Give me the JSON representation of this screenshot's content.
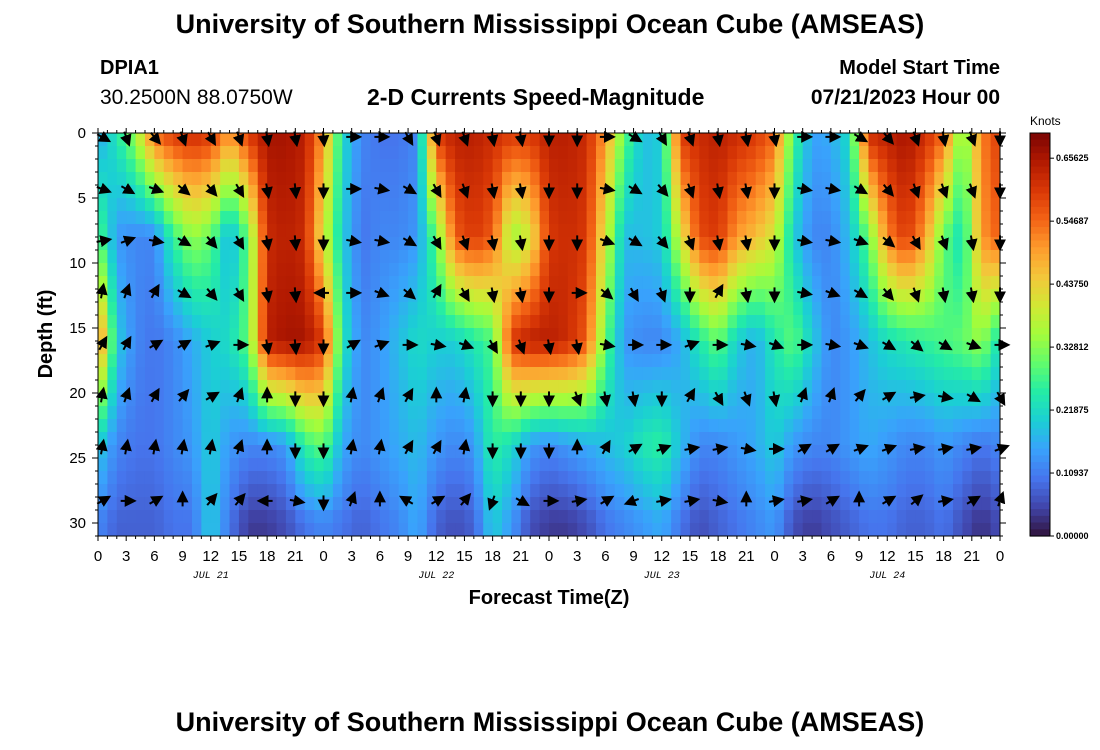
{
  "header": {
    "title": "University of Southern Mississippi Ocean Cube (AMSEAS)",
    "station_id": "DPIA1",
    "station_coords": "30.2500N  88.0750W",
    "subtitle": "2-D Currents Speed-Magnitude",
    "model_label": "Model Start Time",
    "model_time": "07/21/2023 Hour 00"
  },
  "footer": {
    "title": "University of Southern Mississippi Ocean Cube (AMSEAS)"
  },
  "chart_data": {
    "type": "heatmap",
    "title": "2-D Currents Speed-Magnitude",
    "xlabel": "Forecast Time(Z)",
    "ylabel": "Depth (ft)",
    "x_tick_labels": [
      "0",
      "3",
      "6",
      "9",
      "12",
      "15",
      "18",
      "21",
      "0",
      "3",
      "6",
      "9",
      "12",
      "15",
      "18",
      "21",
      "0",
      "3",
      "6",
      "9",
      "12",
      "15",
      "18",
      "21",
      "0",
      "3",
      "6",
      "9",
      "12",
      "15",
      "18",
      "21",
      "0"
    ],
    "x_range_hours": [
      0,
      96
    ],
    "y_ticks": [
      0,
      5,
      10,
      15,
      20,
      25,
      30
    ],
    "ylim": [
      0,
      31
    ],
    "day_labels": [
      {
        "label": "JUL 21",
        "hour": 12
      },
      {
        "label": "JUL 22",
        "hour": 36
      },
      {
        "label": "JUL 23",
        "hour": 60
      },
      {
        "label": "JUL 24",
        "hour": 84
      }
    ],
    "colorbar": {
      "unit": "Knots",
      "min": 0.0,
      "max": 0.7,
      "labels": [
        "0.65625",
        "0.54687",
        "0.43750",
        "0.32812",
        "0.21875",
        "0.10937",
        "0.00000"
      ],
      "label_values": [
        0.65625,
        0.54687,
        0.4375,
        0.32812,
        0.21875,
        0.10937,
        0.0
      ],
      "colors": [
        "#30123b",
        "#4145ab",
        "#4675ed",
        "#39a2fc",
        "#1bcfd4",
        "#24eca6",
        "#61fc6c",
        "#a4fc3b",
        "#d1e834",
        "#f3c63a",
        "#fe9b2d",
        "#f36315",
        "#d93806",
        "#b11901",
        "#7a0403"
      ]
    },
    "depth_rows_ft": [
      0,
      4,
      8,
      12,
      16,
      20,
      24,
      28
    ],
    "speed_grid_note": "rows = depth 0..30 ft (2 ft step), columns = forecast hour 0..96 (2 h step), values in knots",
    "speed_profiles": [
      {
        "depth_ft": 0,
        "values": [
          0.15,
          0.24,
          0.35,
          0.55,
          0.6,
          0.62,
          0.6,
          0.5,
          0.6,
          0.66,
          0.66,
          0.64,
          0.5,
          0.22,
          0.12,
          0.1,
          0.1,
          0.12,
          0.6,
          0.64,
          0.64,
          0.62,
          0.6,
          0.6,
          0.64,
          0.64,
          0.62,
          0.5,
          0.3,
          0.18,
          0.2,
          0.6,
          0.62,
          0.64,
          0.62,
          0.6,
          0.55,
          0.28,
          0.15,
          0.16,
          0.22,
          0.62,
          0.64,
          0.66,
          0.62,
          0.55,
          0.3,
          0.52,
          0.6
        ]
      },
      {
        "depth_ft": 8,
        "values": [
          0.3,
          0.14,
          0.12,
          0.12,
          0.26,
          0.34,
          0.3,
          0.16,
          0.3,
          0.62,
          0.64,
          0.62,
          0.4,
          0.2,
          0.1,
          0.12,
          0.12,
          0.14,
          0.3,
          0.56,
          0.6,
          0.56,
          0.34,
          0.4,
          0.6,
          0.62,
          0.6,
          0.4,
          0.18,
          0.18,
          0.2,
          0.4,
          0.58,
          0.6,
          0.5,
          0.46,
          0.4,
          0.2,
          0.12,
          0.12,
          0.18,
          0.3,
          0.52,
          0.6,
          0.5,
          0.3,
          0.22,
          0.5,
          0.56
        ]
      },
      {
        "depth_ft": 16,
        "values": [
          0.55,
          0.2,
          0.12,
          0.1,
          0.12,
          0.16,
          0.2,
          0.22,
          0.3,
          0.64,
          0.66,
          0.66,
          0.6,
          0.24,
          0.12,
          0.14,
          0.18,
          0.22,
          0.2,
          0.2,
          0.24,
          0.28,
          0.6,
          0.64,
          0.64,
          0.62,
          0.56,
          0.3,
          0.14,
          0.12,
          0.12,
          0.16,
          0.24,
          0.3,
          0.2,
          0.16,
          0.24,
          0.3,
          0.2,
          0.12,
          0.14,
          0.18,
          0.22,
          0.24,
          0.26,
          0.28,
          0.3,
          0.34,
          0.22
        ]
      },
      {
        "depth_ft": 24,
        "values": [
          0.2,
          0.12,
          0.1,
          0.1,
          0.12,
          0.14,
          0.2,
          0.14,
          0.12,
          0.12,
          0.14,
          0.26,
          0.3,
          0.16,
          0.12,
          0.14,
          0.16,
          0.18,
          0.14,
          0.12,
          0.14,
          0.26,
          0.22,
          0.14,
          0.12,
          0.14,
          0.16,
          0.18,
          0.2,
          0.24,
          0.26,
          0.18,
          0.12,
          0.12,
          0.14,
          0.16,
          0.2,
          0.14,
          0.12,
          0.12,
          0.14,
          0.16,
          0.14,
          0.12,
          0.12,
          0.14,
          0.12,
          0.1,
          0.12
        ]
      },
      {
        "depth_ft": 30,
        "values": [
          0.12,
          0.08,
          0.08,
          0.08,
          0.1,
          0.1,
          0.2,
          0.1,
          0.04,
          0.04,
          0.06,
          0.1,
          0.12,
          0.1,
          0.08,
          0.1,
          0.12,
          0.16,
          0.08,
          0.06,
          0.08,
          0.2,
          0.14,
          0.06,
          0.04,
          0.04,
          0.06,
          0.1,
          0.12,
          0.14,
          0.16,
          0.1,
          0.06,
          0.08,
          0.1,
          0.12,
          0.14,
          0.06,
          0.04,
          0.06,
          0.08,
          0.1,
          0.1,
          0.08,
          0.08,
          0.1,
          0.06,
          0.03,
          0.06
        ]
      }
    ],
    "vector_time_hours": [
      0,
      3,
      6,
      9,
      12,
      15,
      18,
      21,
      24,
      27,
      30,
      33,
      36,
      39,
      42,
      45,
      48,
      51,
      54,
      57,
      60,
      63,
      66,
      69,
      72,
      75,
      78,
      81,
      84,
      87,
      90,
      93,
      96
    ],
    "vector_depths_ft": [
      0,
      4,
      8,
      12,
      16,
      20,
      24,
      28
    ],
    "vector_directions_deg": [
      [
        120,
        160,
        140,
        160,
        150,
        160,
        170,
        170,
        175,
        90,
        90,
        150,
        160,
        160,
        170,
        170,
        180,
        180,
        90,
        120,
        150,
        160,
        170,
        170,
        170,
        90,
        90,
        120,
        140,
        160,
        170,
        160,
        180
      ],
      [
        110,
        120,
        110,
        130,
        140,
        150,
        170,
        175,
        180,
        90,
        100,
        120,
        150,
        160,
        170,
        170,
        180,
        180,
        100,
        120,
        140,
        160,
        170,
        170,
        180,
        100,
        100,
        120,
        140,
        160,
        160,
        160,
        180
      ],
      [
        80,
        70,
        100,
        120,
        140,
        150,
        170,
        175,
        180,
        100,
        100,
        120,
        150,
        160,
        170,
        170,
        180,
        180,
        110,
        120,
        140,
        160,
        170,
        170,
        180,
        100,
        100,
        110,
        130,
        150,
        160,
        170,
        180
      ],
      [
        10,
        20,
        30,
        120,
        140,
        150,
        170,
        175,
        270,
        90,
        110,
        130,
        30,
        150,
        170,
        170,
        180,
        90,
        130,
        150,
        160,
        180,
        30,
        170,
        180,
        100,
        110,
        120,
        140,
        160,
        170,
        170,
        180
      ],
      [
        30,
        30,
        60,
        60,
        70,
        90,
        170,
        175,
        180,
        60,
        70,
        90,
        100,
        110,
        150,
        160,
        170,
        170,
        100,
        90,
        90,
        70,
        90,
        100,
        110,
        90,
        100,
        110,
        120,
        130,
        120,
        110,
        90
      ],
      [
        10,
        20,
        30,
        40,
        60,
        20,
        0,
        180,
        180,
        10,
        20,
        30,
        0,
        10,
        180,
        180,
        180,
        160,
        170,
        170,
        180,
        30,
        150,
        160,
        170,
        20,
        20,
        40,
        60,
        80,
        100,
        120,
        150
      ],
      [
        10,
        10,
        10,
        10,
        10,
        20,
        0,
        180,
        180,
        10,
        10,
        30,
        30,
        10,
        180,
        180,
        180,
        0,
        30,
        60,
        70,
        80,
        80,
        100,
        90,
        60,
        60,
        70,
        70,
        80,
        80,
        80,
        70
      ],
      [
        60,
        90,
        60,
        0,
        40,
        40,
        270,
        100,
        180,
        20,
        0,
        300,
        60,
        40,
        200,
        120,
        90,
        80,
        60,
        250,
        80,
        80,
        100,
        0,
        80,
        80,
        60,
        0,
        60,
        50,
        80,
        60,
        20
      ]
    ]
  }
}
